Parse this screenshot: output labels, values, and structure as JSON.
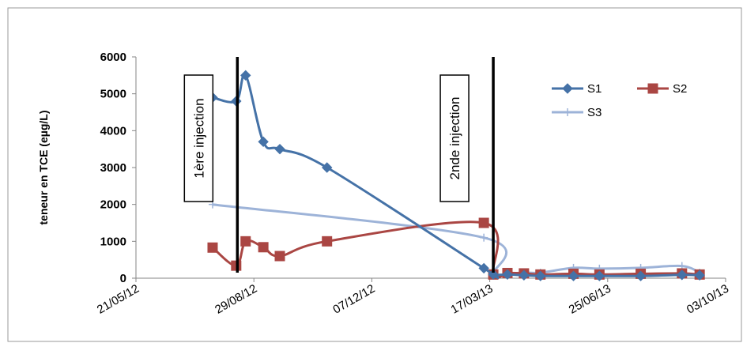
{
  "chart_data": {
    "type": "line",
    "ylabel": "teneur en TCE (eµg/L)",
    "ylim": [
      0,
      6000
    ],
    "yticks": [
      0,
      1000,
      2000,
      3000,
      4000,
      5000,
      6000
    ],
    "xlim": [
      "2012-05-21",
      "2013-10-03"
    ],
    "xtick_labels": [
      "21/05/12",
      "29/08/12",
      "07/12/12",
      "17/03/13",
      "25/06/13",
      "03/10/13"
    ],
    "xtick_dates": [
      "2012-05-21",
      "2012-08-29",
      "2012-12-07",
      "2013-03-17",
      "2013-06-25",
      "2013-10-03"
    ],
    "grid": false,
    "legend_position": "top-right",
    "series": [
      {
        "name": "S1",
        "color": "#4572A7",
        "marker": "diamond",
        "x": [
          "2012-07-25",
          "2012-08-14",
          "2012-08-22",
          "2012-09-06",
          "2012-09-20",
          "2012-10-30",
          "2013-03-12",
          "2013-03-20",
          "2013-04-01",
          "2013-04-15",
          "2013-04-29",
          "2013-05-27",
          "2013-06-18",
          "2013-07-23",
          "2013-08-27",
          "2013-09-11"
        ],
        "values": [
          4900,
          4800,
          5500,
          3700,
          3500,
          3000,
          270,
          100,
          100,
          80,
          60,
          60,
          60,
          60,
          90,
          80
        ]
      },
      {
        "name": "S2",
        "color": "#AA4643",
        "marker": "square",
        "x": [
          "2012-07-25",
          "2012-08-14",
          "2012-08-22",
          "2012-09-06",
          "2012-09-20",
          "2012-10-30",
          "2013-03-12",
          "2013-03-20",
          "2013-04-01",
          "2013-04-15",
          "2013-04-29",
          "2013-05-27",
          "2013-06-18",
          "2013-07-23",
          "2013-08-27",
          "2013-09-11"
        ],
        "values": [
          830,
          340,
          1000,
          840,
          600,
          1000,
          1500,
          100,
          140,
          130,
          100,
          120,
          100,
          120,
          130,
          100
        ]
      },
      {
        "name": "S3",
        "color": "#9DB3D8",
        "marker": "plus",
        "x": [
          "2012-07-25",
          "2013-03-12",
          "2013-03-20",
          "2013-04-01",
          "2013-04-15",
          "2013-04-29",
          "2013-05-27",
          "2013-06-18",
          "2013-07-23",
          "2013-08-27",
          "2013-09-11"
        ],
        "values": [
          2000,
          1100,
          100,
          120,
          150,
          150,
          280,
          260,
          280,
          330,
          150
        ]
      }
    ],
    "annotations": [
      {
        "label": "1ère injection",
        "date": "2012-08-15"
      },
      {
        "label": "2nde injection",
        "date": "2013-03-20"
      }
    ]
  }
}
